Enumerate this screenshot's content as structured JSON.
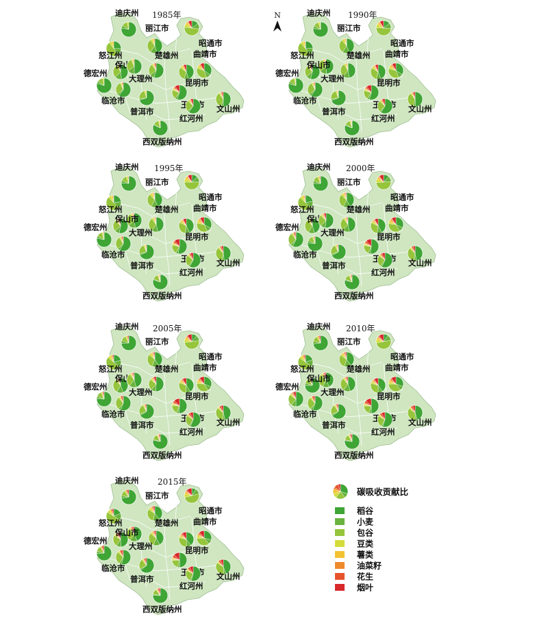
{
  "north_label": "N",
  "categories": [
    "稻谷",
    "小麦",
    "包谷",
    "豆类",
    "薯类",
    "油菜籽",
    "花生",
    "烟叶"
  ],
  "colors": [
    "#3fa535",
    "#6ab33e",
    "#96c53c",
    "#d3dc3a",
    "#f2c232",
    "#ee8a2c",
    "#e5532d",
    "#d8282a"
  ],
  "legend": {
    "title": "碳吸收贡献比",
    "items": [
      "稻谷",
      "小麦",
      "包谷",
      "豆类",
      "薯类",
      "油菜籽",
      "花生",
      "烟叶"
    ]
  },
  "maps": [
    {
      "year": "1985年",
      "labels": [
        "迪庆州",
        "丽江市",
        "怒江州",
        "保山市",
        "大理州",
        "楚雄州",
        "德宏州",
        "临沧市",
        "普洱市",
        "西双版纳州",
        "昭通市",
        "曲靖市",
        "昆明市",
        "玉溪市",
        "红河州",
        "文山州"
      ]
    },
    {
      "year": "1990年",
      "labels": [
        "迪庆州",
        "丽江市",
        "怒江州",
        "楚雄州",
        "大理州",
        "保山市",
        "德宏州",
        "临沧市",
        "普洱市",
        "西双版纳州",
        "昭通市",
        "曲靖市",
        "昆明市",
        "玉溪市",
        "红河州",
        "文山州"
      ]
    },
    {
      "year": "1995年",
      "labels": [
        "迪庆州",
        "丽江市",
        "怒江州",
        "楚雄州",
        "大理州",
        "保山市",
        "德宏州",
        "临沧市",
        "普洱市",
        "西双版纳州",
        "昭通市",
        "曲靖市",
        "昆明市",
        "玉溪市",
        "红河州",
        "文山州"
      ]
    },
    {
      "year": "2000年",
      "labels": [
        "迪庆州",
        "丽江市",
        "怒江州",
        "保山市",
        "楚雄州",
        "大理州",
        "临沧市",
        "德宏州",
        "普洱市",
        "西双版纳州",
        "昭通市",
        "曲靖市",
        "昆明市",
        "玉溪市",
        "红河州",
        "文山州"
      ]
    },
    {
      "year": "2005年",
      "labels": [
        "迪庆州",
        "丽江市",
        "怒江州",
        "保山市",
        "大理州",
        "楚雄州",
        "德宏州",
        "临沧市",
        "普洱市",
        "西双版纳州",
        "昭通市",
        "曲靖市",
        "昆明市",
        "玉溪市",
        "红河州",
        "文山州"
      ]
    },
    {
      "year": "2010年",
      "labels": [
        "迪庆州",
        "丽江市",
        "怒江州",
        "大理州",
        "楚雄州",
        "德宏州",
        "保山市",
        "临沧市",
        "普洱市",
        "西双版纳州",
        "昭通市",
        "曲靖市",
        "昆明市",
        "玉溪市",
        "红河州",
        "文山州"
      ]
    },
    {
      "year": "2015年",
      "labels": [
        "迪庆州",
        "丽江市",
        "怒江州",
        "楚雄州",
        "大理州",
        "保山市",
        "德宏州",
        "临沧市",
        "普洱市",
        "西双版纳州",
        "昭通市",
        "曲靖市",
        "昆明市",
        "玉溪市",
        "红河州",
        "文山州"
      ]
    }
  ],
  "pie_shares": [
    [
      [
        0.78,
        0.06,
        0.12,
        0.04,
        0,
        0,
        0,
        0
      ],
      [
        0.45,
        0.15,
        0.3,
        0.05,
        0.03,
        0.02,
        0,
        0
      ],
      [
        0.25,
        0.15,
        0.5,
        0.06,
        0.04,
        0,
        0,
        0
      ],
      [
        0.48,
        0.14,
        0.3,
        0.04,
        0.02,
        0.02,
        0,
        0
      ],
      [
        0.5,
        0.15,
        0.28,
        0.03,
        0.02,
        0.02,
        0,
        0
      ],
      [
        0.55,
        0.1,
        0.25,
        0.03,
        0.02,
        0.02,
        0,
        0.03
      ],
      [
        0.8,
        0.05,
        0.12,
        0.03,
        0,
        0,
        0,
        0
      ],
      [
        0.6,
        0.05,
        0.28,
        0.03,
        0.02,
        0,
        0.02,
        0
      ],
      [
        0.7,
        0.03,
        0.22,
        0.03,
        0.02,
        0,
        0,
        0
      ],
      [
        0.82,
        0.02,
        0.12,
        0.02,
        0.02,
        0,
        0,
        0
      ],
      [
        0.15,
        0.12,
        0.5,
        0.08,
        0.05,
        0.02,
        0,
        0.08
      ],
      [
        0.35,
        0.1,
        0.35,
        0.05,
        0.04,
        0.03,
        0,
        0.08
      ],
      [
        0.45,
        0.1,
        0.3,
        0.04,
        0.03,
        0.02,
        0,
        0.06
      ],
      [
        0.55,
        0.05,
        0.2,
        0.03,
        0.02,
        0.02,
        0.03,
        0.1
      ],
      [
        0.6,
        0.03,
        0.25,
        0.03,
        0.02,
        0,
        0.02,
        0.05
      ],
      [
        0.5,
        0.05,
        0.35,
        0.03,
        0.02,
        0,
        0.02,
        0.03
      ]
    ]
  ],
  "year_pie_shift": [
    0,
    0.01,
    0.02,
    0.03,
    0.04,
    0.05,
    0.06
  ]
}
